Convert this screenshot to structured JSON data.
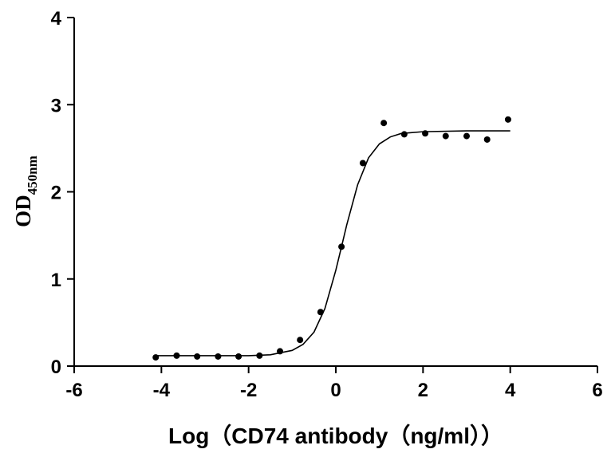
{
  "chart_data": {
    "type": "scatter",
    "x_label": "Log（CD74 antibody（ng/ml））",
    "y_label": "OD",
    "y_label_subscript": "450nm",
    "x": [
      -4.13,
      -3.65,
      -3.18,
      -2.7,
      -2.23,
      -1.75,
      -1.28,
      -0.82,
      -0.35,
      0.13,
      0.62,
      1.1,
      1.57,
      2.05,
      2.52,
      3.0,
      3.47,
      3.95
    ],
    "values": [
      0.1,
      0.12,
      0.11,
      0.11,
      0.11,
      0.12,
      0.17,
      0.3,
      0.62,
      1.37,
      2.33,
      2.79,
      2.66,
      2.67,
      2.64,
      2.64,
      2.6,
      2.83
    ],
    "fit_x": [
      -4.13,
      -3,
      -2,
      -1.5,
      -1,
      -0.75,
      -0.5,
      -0.25,
      0,
      0.15,
      0.25,
      0.5,
      0.75,
      1,
      1.25,
      1.5,
      2,
      3,
      4
    ],
    "fit_values": [
      0.12,
      0.12,
      0.12,
      0.13,
      0.18,
      0.25,
      0.39,
      0.66,
      1.1,
      1.41,
      1.62,
      2.08,
      2.39,
      2.55,
      2.63,
      2.67,
      2.69,
      2.7,
      2.7
    ],
    "color": "#000000",
    "xlim": [
      -6,
      6
    ],
    "xticks": [
      -6,
      -4,
      -2,
      0,
      2,
      4,
      6
    ],
    "ylim": [
      0,
      4
    ],
    "yticks": [
      0,
      1,
      2,
      3,
      4
    ],
    "grid": false
  }
}
